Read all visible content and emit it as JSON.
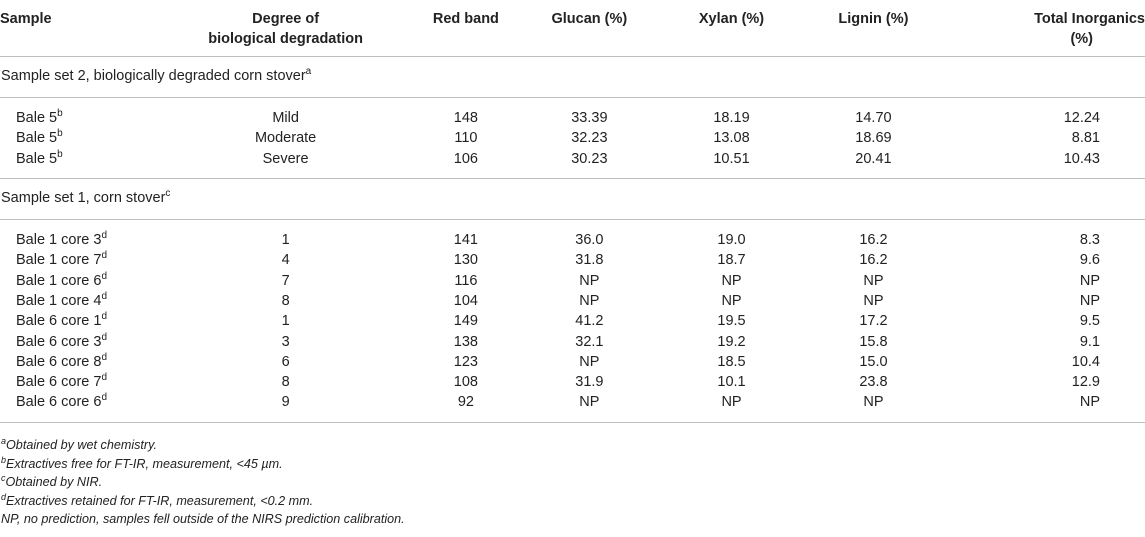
{
  "headers": {
    "sample": "Sample",
    "degree_1": "Degree of",
    "degree_2": "biological degradation",
    "red": "Red band",
    "glucan": "Glucan (%)",
    "xylan": "Xylan (%)",
    "lignin": "Lignin (%)",
    "total_1": "Total Inorganics",
    "total_2": "(%)"
  },
  "sections": [
    {
      "title": "Sample set 2, biologically degraded corn stover",
      "title_sup": "a",
      "rows": [
        {
          "sample": "Bale 5",
          "sup": "b",
          "degree": "Mild",
          "red": "148",
          "glucan": "33.39",
          "xylan": "18.19",
          "lignin": "14.70",
          "total": "12.24"
        },
        {
          "sample": "Bale 5",
          "sup": "b",
          "degree": "Moderate",
          "red": "110",
          "glucan": "32.23",
          "xylan": "13.08",
          "lignin": "18.69",
          "total": "8.81"
        },
        {
          "sample": "Bale 5",
          "sup": "b",
          "degree": "Severe",
          "red": "106",
          "glucan": "30.23",
          "xylan": "10.51",
          "lignin": "20.41",
          "total": "10.43"
        }
      ]
    },
    {
      "title": "Sample set 1, corn stover",
      "title_sup": "c",
      "rows": [
        {
          "sample": "Bale 1 core 3",
          "sup": "d",
          "degree": "1",
          "red": "141",
          "glucan": "36.0",
          "xylan": "19.0",
          "lignin": "16.2",
          "total": "8.3"
        },
        {
          "sample": "Bale 1 core 7",
          "sup": "d",
          "degree": "4",
          "red": "130",
          "glucan": "31.8",
          "xylan": "18.7",
          "lignin": "16.2",
          "total": "9.6"
        },
        {
          "sample": "Bale 1 core 6",
          "sup": "d",
          "degree": "7",
          "red": "116",
          "glucan": "NP",
          "xylan": "NP",
          "lignin": "NP",
          "total": "NP"
        },
        {
          "sample": "Bale 1 core 4",
          "sup": "d",
          "degree": "8",
          "red": "104",
          "glucan": "NP",
          "xylan": "NP",
          "lignin": "NP",
          "total": "NP"
        },
        {
          "sample": "Bale 6 core 1",
          "sup": "d",
          "degree": "1",
          "red": "149",
          "glucan": "41.2",
          "xylan": "19.5",
          "lignin": "17.2",
          "total": "9.5"
        },
        {
          "sample": "Bale 6 core 3",
          "sup": "d",
          "degree": "3",
          "red": "138",
          "glucan": "32.1",
          "xylan": "19.2",
          "lignin": "15.8",
          "total": "9.1"
        },
        {
          "sample": "Bale 6 core 8",
          "sup": "d",
          "degree": "6",
          "red": "123",
          "glucan": "NP",
          "xylan": "18.5",
          "lignin": "15.0",
          "total": "10.4"
        },
        {
          "sample": "Bale 6 core 7",
          "sup": "d",
          "degree": "8",
          "red": "108",
          "glucan": "31.9",
          "xylan": "10.1",
          "lignin": "23.8",
          "total": "12.9"
        },
        {
          "sample": "Bale 6 core 6",
          "sup": "d",
          "degree": "9",
          "red": "92",
          "glucan": "NP",
          "xylan": "NP",
          "lignin": "NP",
          "total": "NP"
        }
      ]
    }
  ],
  "footnotes": [
    {
      "sup": "a",
      "text": "Obtained by wet chemistry."
    },
    {
      "sup": "b",
      "text": "Extractives free for FT-IR, measurement, <45 µm."
    },
    {
      "sup": "c",
      "text": "Obtained by NIR."
    },
    {
      "sup": "d",
      "text": "Extractives retained for FT-IR, measurement, <0.2 mm."
    },
    {
      "sup": "",
      "text": "NP, no prediction, samples fell outside of the NIRS prediction calibration."
    }
  ]
}
